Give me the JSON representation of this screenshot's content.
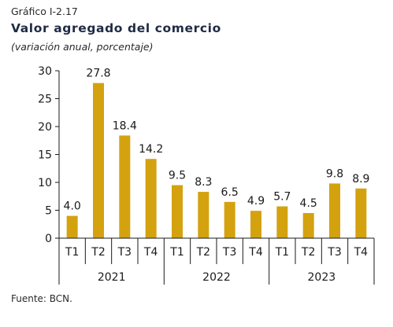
{
  "header": {
    "label": "Gráfico I-2.17",
    "title": "Valor agregado del comercio",
    "subtitle": "(variación anual, porcentaje)"
  },
  "footer": {
    "source": "Fuente: BCN."
  },
  "chart_data": {
    "type": "bar",
    "categories": [
      "T1",
      "T2",
      "T3",
      "T4",
      "T1",
      "T2",
      "T3",
      "T4",
      "T1",
      "T2",
      "T3",
      "T4"
    ],
    "groups": [
      {
        "label": "2021",
        "count": 4
      },
      {
        "label": "2022",
        "count": 4
      },
      {
        "label": "2023",
        "count": 4
      }
    ],
    "values": [
      4.0,
      27.8,
      18.4,
      14.2,
      9.5,
      8.3,
      6.5,
      4.9,
      5.7,
      4.5,
      9.8,
      8.9
    ],
    "value_labels": [
      "4.0",
      "27.8",
      "18.4",
      "14.2",
      "9.5",
      "8.3",
      "6.5",
      "4.9",
      "5.7",
      "4.5",
      "9.8",
      "8.9"
    ],
    "yticks": [
      0,
      5,
      10,
      15,
      20,
      25,
      30
    ],
    "ylim": [
      0,
      30
    ],
    "bar_color": "#d4a20f",
    "grid": false,
    "legend": false
  }
}
